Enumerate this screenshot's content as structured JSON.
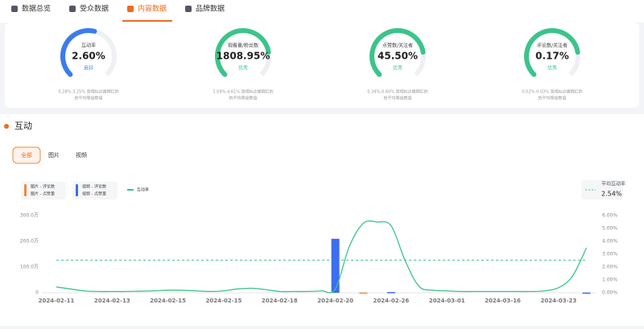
{
  "tabs": [
    "数据总览",
    "受众数据",
    "内容数据",
    "品牌数据"
  ],
  "active_tab": 2,
  "gauges": [
    {
      "label": "互动率",
      "value": "2.60%",
      "rating": "良好",
      "note": [
        "0.28%-3.25% 是相似达播网红的",
        "的平均等级数值"
      ]
    },
    {
      "label": "观看量/粉丝数",
      "value": "1808.95%",
      "rating": "优秀",
      "note": [
        "3.09%-4.61% 是相似达播网红的",
        "的平均等级数值"
      ]
    },
    {
      "label": "点赞数/关注者",
      "value": "45.50%",
      "rating": "优秀",
      "note": [
        "0.34%-0.60% 是相似达播网红的",
        "的平均等级数值"
      ]
    },
    {
      "label": "评论数/关注者",
      "value": "0.17%",
      "rating": "优秀",
      "note": [
        "0.02%-0.03% 是相似达播网红的",
        "的平均等级数值"
      ]
    }
  ],
  "section_title": "互动",
  "filters": [
    "全部",
    "图片",
    "视频"
  ],
  "chart_data": {
    "type": "bar",
    "categories": [
      "2024-02-11",
      null,
      null,
      null,
      "2024-02-13",
      null,
      null,
      null,
      "2024-02-15",
      null,
      null,
      null,
      "2024-02-15",
      null,
      null,
      null,
      "2024-02-18",
      null,
      null,
      null,
      "2024-02-20",
      null,
      null,
      null,
      "2024-02-26",
      null,
      null,
      null,
      "2024-03-01",
      null,
      null,
      null,
      "2024-03-16",
      null,
      null,
      null,
      "2024-03-23",
      null,
      null
    ],
    "series": [
      {
        "name": "图片 - 评论数",
        "color": "#f08a3a",
        "values": [
          null,
          null,
          null,
          null,
          null,
          null,
          null,
          null,
          null,
          null,
          null,
          null,
          null,
          null,
          null,
          null,
          null,
          null,
          null,
          null,
          null,
          null,
          null,
          null,
          null,
          null,
          null,
          null,
          null,
          null,
          null,
          null,
          null,
          null,
          null,
          null,
          null,
          null,
          null
        ]
      },
      {
        "name": "图片 - 点赞量",
        "color": "#f08a3a",
        "values": [
          null,
          null,
          null,
          null,
          null,
          null,
          null,
          null,
          null,
          null,
          null,
          null,
          null,
          null,
          null,
          null,
          null,
          null,
          null,
          null,
          null,
          null,
          1,
          null,
          null,
          null,
          null,
          null,
          null,
          null,
          null,
          null,
          null,
          null,
          null,
          null,
          null,
          null,
          null
        ]
      },
      {
        "name": "视频 - 评论数",
        "color": "#3b6ef0",
        "values": [
          null,
          null,
          null,
          null,
          null,
          null,
          null,
          null,
          null,
          null,
          null,
          null,
          null,
          null,
          null,
          null,
          null,
          null,
          null,
          null,
          null,
          null,
          null,
          null,
          null,
          null,
          null,
          null,
          null,
          null,
          null,
          null,
          null,
          null,
          null,
          null,
          null,
          null,
          null
        ]
      },
      {
        "name": "视频 - 点赞量",
        "color": "#3b6ef0",
        "values": [
          null,
          null,
          null,
          null,
          null,
          null,
          null,
          null,
          null,
          null,
          null,
          null,
          null,
          null,
          null,
          null,
          null,
          null,
          null,
          null,
          210,
          null,
          null,
          null,
          3,
          null,
          null,
          null,
          null,
          null,
          null,
          null,
          null,
          null,
          null,
          null,
          null,
          null,
          1
        ]
      },
      {
        "name": "互动率",
        "color": "#3cc48a",
        "axis": "y2",
        "values": [
          0.45,
          0.3,
          0.15,
          0.1,
          0.1,
          0.1,
          0.12,
          0.15,
          0.2,
          0.2,
          0.15,
          0.1,
          0.15,
          0.3,
          0.35,
          0.25,
          0.1,
          0.1,
          0.1,
          0.15,
          0.3,
          3.6,
          5.4,
          5.5,
          5.2,
          2.5,
          0.5,
          0.2,
          0.15,
          0.1,
          0.1,
          0.1,
          0.1,
          0.1,
          0.1,
          0.15,
          0.4,
          1.3,
          3.5
        ]
      }
    ],
    "ylim": [
      0,
      300
    ],
    "yticks": [
      0,
      {
        "value": 100,
        "label": "100.0万"
      },
      {
        "value": 200,
        "label": "200.0万"
      },
      {
        "value": 300,
        "label": "300.0万"
      }
    ],
    "y2lim": [
      0,
      6
    ],
    "y2ticks": [
      {
        "value": 0,
        "label": "0.00%"
      },
      {
        "value": 1,
        "label": "1.00%"
      },
      {
        "value": 2,
        "label": "2.00%"
      },
      {
        "value": 3,
        "label": "3.00%"
      },
      {
        "value": 4,
        "label": "4.00%"
      },
      {
        "value": 5,
        "label": "5.00%"
      },
      {
        "value": 6,
        "label": "6.00%"
      }
    ],
    "average": {
      "label": "平均互动率",
      "value": 2.54,
      "value_label": "2.54%"
    }
  }
}
